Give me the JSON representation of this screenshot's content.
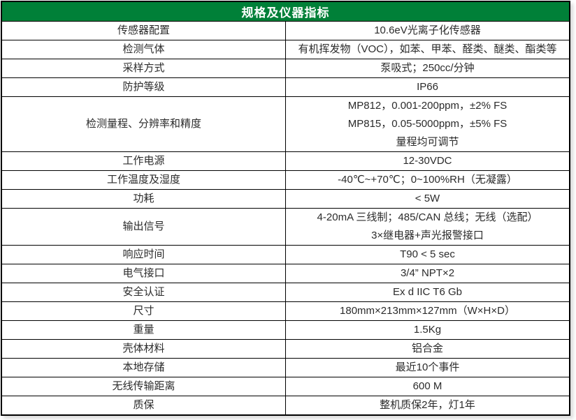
{
  "title": "规格及仪器指标",
  "colors": {
    "header_bg": "#008038",
    "header_text": "#ffffff",
    "border": "#000000",
    "cell_bg": "#ffffff",
    "text": "#2b2b2b"
  },
  "rows": [
    {
      "label": "传感器配置",
      "values": [
        "10.6eV光离子化传感器"
      ]
    },
    {
      "label": "检测气体",
      "values": [
        "有机挥发物（VOC），如苯、甲苯、醛类、醚类、酯类等"
      ]
    },
    {
      "label": "采样方式",
      "values": [
        "泵吸式；250cc/分钟"
      ]
    },
    {
      "label": "防护等级",
      "values": [
        "IP66"
      ]
    },
    {
      "label": "检测量程、分辨率和精度",
      "values": [
        "MP812，0.001-200ppm，±2% FS",
        "MP815，0.05-5000ppm，±5% FS",
        "量程均可调节"
      ]
    },
    {
      "label": "工作电源",
      "values": [
        "12-30VDC"
      ]
    },
    {
      "label": "工作温度及湿度",
      "values": [
        "-40℃~+70℃；0~100%RH（无凝露）"
      ]
    },
    {
      "label": "功耗",
      "values": [
        "< 5W"
      ]
    },
    {
      "label": "输出信号",
      "values": [
        "4-20mA 三线制；485/CAN 总线；无线（选配）",
        "3×继电器+声光报警接口"
      ]
    },
    {
      "label": "响应时间",
      "values": [
        "T90 < 5 sec"
      ]
    },
    {
      "label": "电气接口",
      "values": [
        "3/4” NPT×2"
      ]
    },
    {
      "label": "安全认证",
      "values": [
        "Ex d IIC T6 Gb"
      ]
    },
    {
      "label": "尺寸",
      "values": [
        "180mm×213mm×127mm（W×H×D）"
      ]
    },
    {
      "label": "重量",
      "values": [
        "1.5Kg"
      ]
    },
    {
      "label": "壳体材料",
      "values": [
        "铝合金"
      ]
    },
    {
      "label": "本地存储",
      "values": [
        "最近10个事件"
      ]
    },
    {
      "label": "无线传输距离",
      "values": [
        "600 M"
      ]
    },
    {
      "label": "质保",
      "values": [
        "整机质保2年，灯1年"
      ]
    }
  ]
}
